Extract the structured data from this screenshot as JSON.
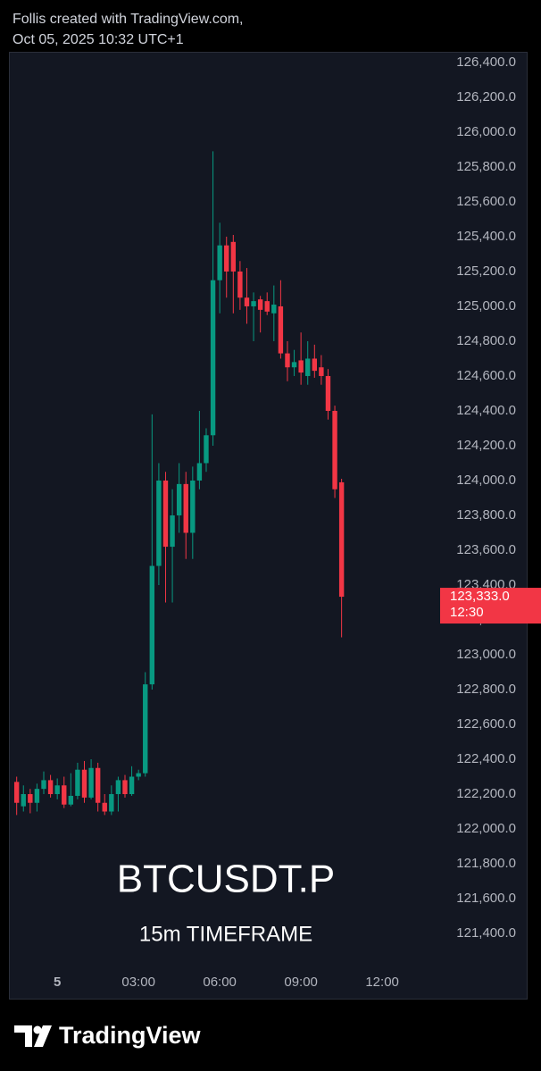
{
  "header": {
    "line1": "Follis created with TradingView.com,",
    "line2": "Oct 05, 2025 10:32 UTC+1"
  },
  "footer": {
    "logo_text": "TradingView"
  },
  "chart_data": {
    "type": "candlestick",
    "watermark": "BTCUSDT.P",
    "subtitle": "15m TIMEFRAME",
    "up_color": "#089981",
    "down_color": "#f23645",
    "grid": false,
    "x": [
      -1.5,
      -1.25,
      -1,
      -0.75,
      -0.5,
      -0.25,
      0,
      0.25,
      0.5,
      0.75,
      1,
      1.25,
      1.5,
      1.75,
      2,
      2.25,
      2.5,
      2.75,
      3,
      3.25,
      3.5,
      3.75,
      4,
      4.25,
      4.5,
      4.75,
      5,
      5.25,
      5.5,
      5.75,
      6,
      6.25,
      6.5,
      6.75,
      7,
      7.25,
      7.5,
      7.75,
      8,
      8.25,
      8.5,
      8.75,
      9,
      9.25,
      9.5,
      9.75,
      10,
      10.25,
      10.5
    ],
    "open": [
      122270,
      122130,
      122200,
      122150,
      122230,
      122280,
      122200,
      122250,
      122140,
      122190,
      122340,
      122180,
      122350,
      122150,
      122100,
      122200,
      122280,
      122200,
      122300,
      122320,
      122830,
      123510,
      124000,
      123620,
      123800,
      123980,
      123700,
      124000,
      124100,
      124260,
      125150,
      125350,
      125370,
      125200,
      125050,
      125000,
      125040,
      125030,
      124960,
      125000,
      124730,
      124650,
      124690,
      124600,
      124700,
      124650,
      124600,
      124400,
      123990
    ],
    "high": [
      122300,
      122250,
      122230,
      122260,
      122330,
      122310,
      122290,
      122300,
      122320,
      122380,
      122390,
      122400,
      122380,
      122200,
      122250,
      122300,
      122310,
      122360,
      122340,
      122900,
      124380,
      124100,
      124050,
      123950,
      124100,
      124050,
      124080,
      124400,
      124300,
      125890,
      125480,
      125400,
      125410,
      125260,
      125220,
      125080,
      125060,
      125080,
      125120,
      125150,
      124800,
      124750,
      124850,
      124800,
      124780,
      124720,
      124640,
      124430,
      124010
    ],
    "low": [
      122080,
      122100,
      122090,
      122100,
      122200,
      122180,
      122170,
      122120,
      122130,
      122170,
      122150,
      122170,
      122100,
      122080,
      122080,
      122100,
      122180,
      122190,
      122280,
      122300,
      122800,
      123400,
      123300,
      123300,
      123700,
      123550,
      123550,
      123950,
      124050,
      124200,
      124960,
      125050,
      124960,
      124980,
      124900,
      124800,
      124850,
      124950,
      124800,
      124700,
      124570,
      124600,
      124550,
      124550,
      124590,
      124550,
      124350,
      123900,
      123100
    ],
    "close": [
      122150,
      122200,
      122150,
      122230,
      122280,
      122200,
      122250,
      122140,
      122190,
      122340,
      122180,
      122350,
      122150,
      122100,
      122200,
      122280,
      122200,
      122300,
      122320,
      122830,
      123510,
      124000,
      123620,
      123800,
      123980,
      123700,
      124000,
      124100,
      124260,
      125150,
      125350,
      125200,
      125200,
      125050,
      125000,
      125030,
      124980,
      124970,
      125010,
      124730,
      124650,
      124680,
      124620,
      124700,
      124630,
      124600,
      124400,
      123950,
      123333
    ],
    "xlim": [
      -1.72,
      14.04
    ],
    "xticks": [
      {
        "value": 0,
        "label": "5"
      },
      {
        "value": 3,
        "label": "03:00"
      },
      {
        "value": 6,
        "label": "06:00"
      },
      {
        "value": 9,
        "label": "09:00"
      },
      {
        "value": 12,
        "label": "12:00"
      }
    ],
    "ylim": [
      121195,
      126451
    ],
    "yticks": [
      {
        "value": 121400,
        "label": "121,400.0"
      },
      {
        "value": 121600,
        "label": "121,600.0"
      },
      {
        "value": 121800,
        "label": "121,800.0"
      },
      {
        "value": 122000,
        "label": "122,000.0"
      },
      {
        "value": 122200,
        "label": "122,200.0"
      },
      {
        "value": 122400,
        "label": "122,400.0"
      },
      {
        "value": 122600,
        "label": "122,600.0"
      },
      {
        "value": 122800,
        "label": "122,800.0"
      },
      {
        "value": 123000,
        "label": "123,000.0"
      },
      {
        "value": 123200,
        "label": "123,200.0"
      },
      {
        "value": 123400,
        "label": "123,400.0"
      },
      {
        "value": 123600,
        "label": "123,600.0"
      },
      {
        "value": 123800,
        "label": "123,800.0"
      },
      {
        "value": 124000,
        "label": "124,000.0"
      },
      {
        "value": 124200,
        "label": "124,200.0"
      },
      {
        "value": 124400,
        "label": "124,400.0"
      },
      {
        "value": 124600,
        "label": "124,600.0"
      },
      {
        "value": 124800,
        "label": "124,800.0"
      },
      {
        "value": 125000,
        "label": "125,000.0"
      },
      {
        "value": 125200,
        "label": "125,200.0"
      },
      {
        "value": 125400,
        "label": "125,400.0"
      },
      {
        "value": 125600,
        "label": "125,600.0"
      },
      {
        "value": 125800,
        "label": "125,800.0"
      },
      {
        "value": 126000,
        "label": "126,000.0"
      },
      {
        "value": 126200,
        "label": "126,200.0"
      },
      {
        "value": 126400,
        "label": "126,400.0"
      }
    ],
    "last_price": {
      "value": 123333,
      "label": "123,333.0",
      "countdown": "12:30",
      "color": "#f23645"
    }
  }
}
